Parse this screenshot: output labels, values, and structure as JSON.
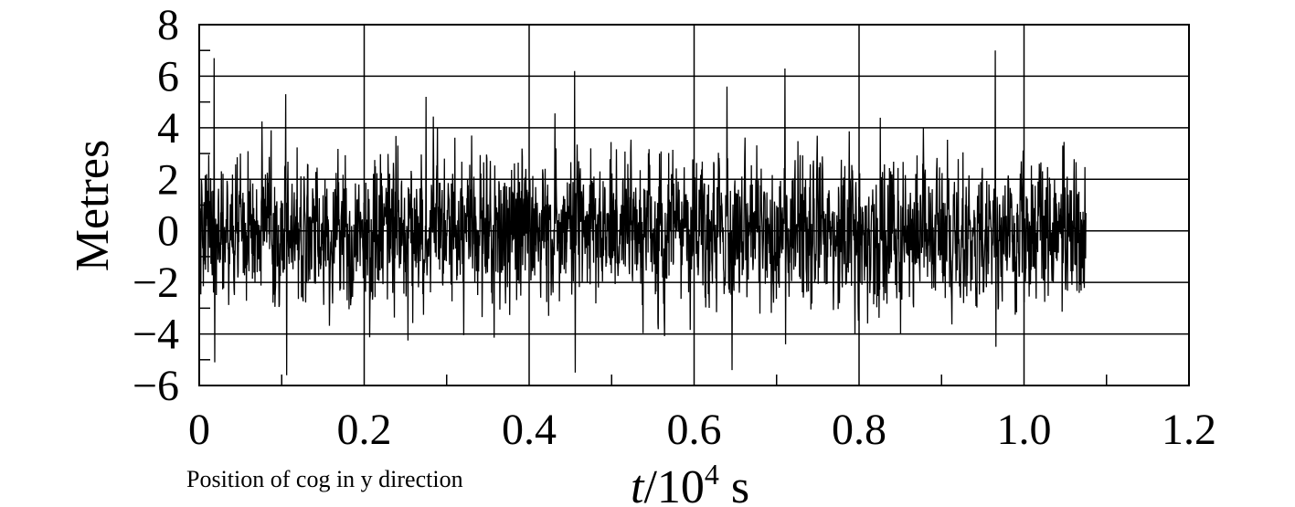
{
  "chart_data": {
    "type": "line",
    "series": [
      {
        "x_range": [
          0,
          1.075
        ],
        "y_range_approx": [
          -5.6,
          6.9
        ],
        "peaks": [
          {
            "x": 0.018,
            "y": 6.7
          },
          {
            "x": 0.105,
            "y": 5.3
          },
          {
            "x": 0.275,
            "y": 5.2
          },
          {
            "x": 0.455,
            "y": 6.2
          },
          {
            "x": 0.64,
            "y": 5.6
          },
          {
            "x": 0.71,
            "y": 6.3
          },
          {
            "x": 0.965,
            "y": 7.0
          }
        ],
        "troughs": [
          {
            "x": 0.018,
            "y": -5.1
          },
          {
            "x": 0.105,
            "y": -5.6
          },
          {
            "x": 0.455,
            "y": -5.5
          },
          {
            "x": 0.645,
            "y": -5.4
          },
          {
            "x": 0.71,
            "y": -4.4
          },
          {
            "x": 0.965,
            "y": -4.5
          }
        ],
        "typical_amplitude": 2.5,
        "color": "#000000"
      }
    ],
    "xlim": [
      0,
      1.2
    ],
    "ylim": [
      -6,
      8
    ],
    "x_ticks": [
      "0",
      "0.2",
      "0.4",
      "0.6",
      "0.8",
      "1.0",
      "1.2"
    ],
    "y_ticks": [
      "8",
      "6",
      "4",
      "2",
      "0",
      "−2",
      "−4",
      "−6"
    ],
    "xlabel_italic": "t",
    "xlabel_rest": "/10",
    "xlabel_sup": "4",
    "xlabel_unit": " s",
    "ylabel": "Metres",
    "caption": "Position of cog in y direction",
    "grid": true
  }
}
